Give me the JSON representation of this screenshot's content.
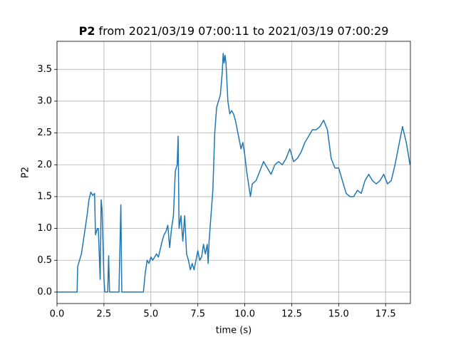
{
  "chart_data": {
    "type": "line",
    "title_bold": "P2",
    "title": "from 2021/03/19 07:00:11 to 2021/03/19 07:00:29",
    "xlabel": "time (s)",
    "ylabel": "P2",
    "xlim": [
      0,
      18.82
    ],
    "ylim": [
      -0.18,
      3.94
    ],
    "xticks": [
      {
        "value": 0,
        "label": "0.0"
      },
      2.5,
      {
        "value": 5,
        "label": "5.0"
      },
      7.5,
      {
        "value": 10,
        "label": "10.0"
      },
      12.5,
      {
        "value": 15,
        "label": "15.0"
      },
      17.5
    ],
    "yticks": [
      {
        "value": 0,
        "label": "0.0"
      },
      0.5,
      {
        "value": 1,
        "label": "1.0"
      },
      1.5,
      {
        "value": 2,
        "label": "2.0"
      },
      2.5,
      {
        "value": 3,
        "label": "3.0"
      },
      3.5
    ],
    "grid": true,
    "x": [
      0,
      1.07,
      1.1,
      1.3,
      1.4,
      1.5,
      1.6,
      1.7,
      1.8,
      1.9,
      2.0,
      2.05,
      2.15,
      2.2,
      2.3,
      2.35,
      2.4,
      2.5,
      2.55,
      2.7,
      2.75,
      2.8,
      3.3,
      3.4,
      3.45,
      4.6,
      4.7,
      4.8,
      4.9,
      5.0,
      5.1,
      5.3,
      5.4,
      5.6,
      5.7,
      5.8,
      5.9,
      6.0,
      6.1,
      6.2,
      6.3,
      6.4,
      6.45,
      6.5,
      6.6,
      6.7,
      6.8,
      6.9,
      7.0,
      7.1,
      7.2,
      7.3,
      7.4,
      7.5,
      7.6,
      7.7,
      7.8,
      7.9,
      8.0,
      8.05,
      8.1,
      8.2,
      8.3,
      8.4,
      8.5,
      8.6,
      8.7,
      8.8,
      8.85,
      8.9,
      8.95,
      9.0,
      9.1,
      9.2,
      9.3,
      9.4,
      9.5,
      9.6,
      9.7,
      9.8,
      9.9,
      10.0,
      10.1,
      10.2,
      10.3,
      10.4,
      10.6,
      10.8,
      11.0,
      11.2,
      11.4,
      11.6,
      11.8,
      12.0,
      12.2,
      12.4,
      12.6,
      12.8,
      13.0,
      13.2,
      13.4,
      13.6,
      13.8,
      14.0,
      14.2,
      14.4,
      14.6,
      14.8,
      15.0,
      15.2,
      15.4,
      15.6,
      15.8,
      16.0,
      16.2,
      16.4,
      16.6,
      16.8,
      17.0,
      17.2,
      17.4,
      17.6,
      17.8,
      18.0,
      18.2,
      18.4,
      18.6,
      18.8
    ],
    "series": [
      {
        "name": "P2",
        "color": "#1f77b4",
        "values": [
          0,
          0,
          0.4,
          0.6,
          0.8,
          1.0,
          1.2,
          1.45,
          1.57,
          1.52,
          1.55,
          0.9,
          1.0,
          1.0,
          0.2,
          1.45,
          1.3,
          0.2,
          0,
          0,
          0.57,
          0,
          0,
          1.37,
          0,
          0,
          0.3,
          0.5,
          0.45,
          0.55,
          0.5,
          0.6,
          0.55,
          0.8,
          0.9,
          0.95,
          1.05,
          0.7,
          1.0,
          1.2,
          1.9,
          2.0,
          2.45,
          1.0,
          1.2,
          0.8,
          1.2,
          0.6,
          0.5,
          0.35,
          0.45,
          0.35,
          0.5,
          0.65,
          0.5,
          0.55,
          0.75,
          0.6,
          0.75,
          0.45,
          0.8,
          1.2,
          1.6,
          2.5,
          2.9,
          3.0,
          3.1,
          3.45,
          3.75,
          3.6,
          3.72,
          3.6,
          3.0,
          2.8,
          2.85,
          2.8,
          2.7,
          2.55,
          2.4,
          2.25,
          2.35,
          2.15,
          1.9,
          1.7,
          1.5,
          1.7,
          1.75,
          1.9,
          2.05,
          1.95,
          1.85,
          2.0,
          2.05,
          2.0,
          2.1,
          2.25,
          2.05,
          2.1,
          2.2,
          2.35,
          2.45,
          2.55,
          2.55,
          2.6,
          2.7,
          2.55,
          2.1,
          1.95,
          1.95,
          1.75,
          1.55,
          1.5,
          1.5,
          1.6,
          1.55,
          1.75,
          1.85,
          1.75,
          1.7,
          1.75,
          1.85,
          1.7,
          1.75,
          2.0,
          2.3,
          2.6,
          2.35,
          2.0
        ]
      }
    ]
  }
}
